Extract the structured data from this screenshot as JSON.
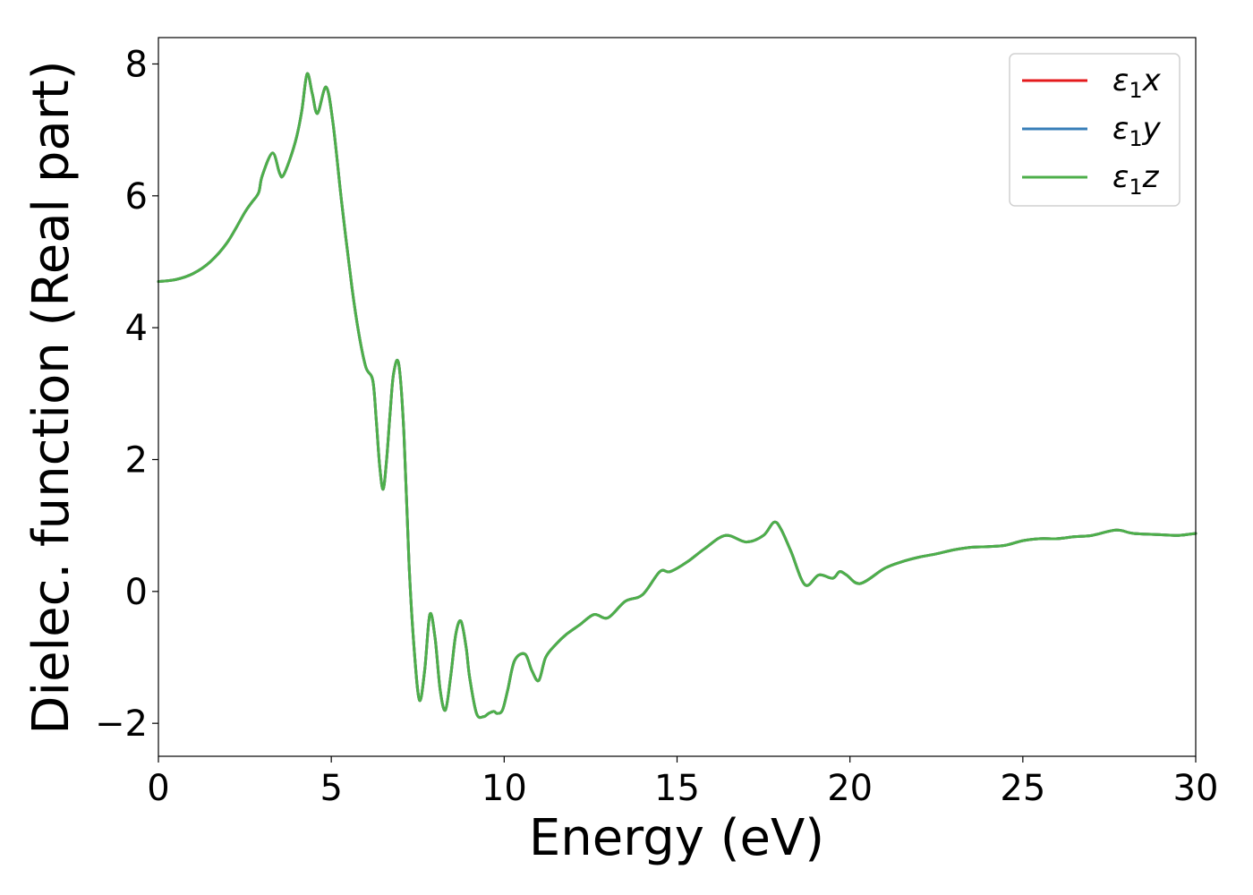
{
  "chart_data": {
    "type": "line",
    "xlabel": "Energy (eV)",
    "ylabel": "Dielec. function (Real part)",
    "xlim": [
      0,
      30
    ],
    "ylim": [
      -2.5,
      8.4
    ],
    "xticks": [
      0,
      5,
      10,
      15,
      20,
      25,
      30
    ],
    "yticks": [
      -2,
      0,
      2,
      4,
      6,
      8
    ],
    "xtick_labels": [
      "0",
      "5",
      "10",
      "15",
      "20",
      "25",
      "30"
    ],
    "ytick_labels": [
      "−2",
      "0",
      "2",
      "4",
      "6",
      "8"
    ],
    "grid": false,
    "legend_position": "top-right",
    "series": [
      {
        "name": "ε1x",
        "legend_main": "ε",
        "legend_sub": "1",
        "legend_var": "x",
        "color": "#e41a1c",
        "x": [
          0,
          0.5,
          1,
          1.5,
          2,
          2.5,
          2.7,
          2.9,
          3.0,
          3.3,
          3.5,
          3.6,
          3.8,
          4.0,
          4.15,
          4.3,
          4.45,
          4.6,
          4.85,
          5.05,
          5.3,
          5.6,
          5.8,
          6.0,
          6.2,
          6.3,
          6.4,
          6.5,
          6.6,
          6.7,
          6.8,
          6.95,
          7.1,
          7.25,
          7.4,
          7.55,
          7.7,
          7.85,
          8.0,
          8.15,
          8.3,
          8.45,
          8.6,
          8.75,
          8.9,
          9.0,
          9.2,
          9.4,
          9.55,
          9.7,
          9.8,
          9.95,
          10.1,
          10.3,
          10.6,
          10.8,
          11.0,
          11.2,
          11.5,
          11.8,
          12.2,
          12.6,
          13.0,
          13.5,
          14.0,
          14.5,
          14.8,
          15.3,
          15.8,
          16.4,
          17.0,
          17.5,
          17.8,
          18.0,
          18.3,
          18.7,
          19.1,
          19.5,
          19.7,
          19.9,
          20.3,
          21.0,
          21.5,
          22.0,
          22.5,
          23.0,
          23.5,
          24.0,
          24.5,
          25.0,
          25.5,
          26.0,
          26.5,
          27.0,
          27.7,
          28.2,
          29.0,
          29.5,
          30.0
        ],
        "y": [
          4.7,
          4.73,
          4.82,
          5.0,
          5.3,
          5.75,
          5.9,
          6.05,
          6.3,
          6.65,
          6.35,
          6.3,
          6.55,
          6.9,
          7.3,
          7.85,
          7.55,
          7.25,
          7.65,
          7.1,
          5.9,
          4.6,
          3.9,
          3.4,
          3.2,
          2.6,
          1.9,
          1.55,
          2.0,
          2.7,
          3.3,
          3.45,
          2.4,
          0.4,
          -0.9,
          -1.65,
          -1.2,
          -0.35,
          -0.7,
          -1.5,
          -1.8,
          -1.3,
          -0.65,
          -0.45,
          -0.85,
          -1.3,
          -1.85,
          -1.9,
          -1.85,
          -1.82,
          -1.85,
          -1.8,
          -1.5,
          -1.05,
          -0.95,
          -1.2,
          -1.35,
          -1.0,
          -0.8,
          -0.65,
          -0.5,
          -0.35,
          -0.4,
          -0.15,
          -0.05,
          0.3,
          0.3,
          0.45,
          0.65,
          0.85,
          0.75,
          0.85,
          1.05,
          0.95,
          0.6,
          0.1,
          0.25,
          0.2,
          0.3,
          0.25,
          0.12,
          0.35,
          0.45,
          0.52,
          0.57,
          0.63,
          0.67,
          0.68,
          0.7,
          0.77,
          0.8,
          0.8,
          0.83,
          0.85,
          0.93,
          0.88,
          0.86,
          0.85,
          0.88
        ]
      },
      {
        "name": "ε1y",
        "legend_main": "ε",
        "legend_sub": "1",
        "legend_var": "y",
        "color": "#377eb8",
        "x": [
          0,
          0.5,
          1,
          1.5,
          2,
          2.5,
          2.7,
          2.9,
          3.0,
          3.3,
          3.5,
          3.6,
          3.8,
          4.0,
          4.15,
          4.3,
          4.45,
          4.6,
          4.85,
          5.05,
          5.3,
          5.6,
          5.8,
          6.0,
          6.2,
          6.3,
          6.4,
          6.5,
          6.6,
          6.7,
          6.8,
          6.95,
          7.1,
          7.25,
          7.4,
          7.55,
          7.7,
          7.85,
          8.0,
          8.15,
          8.3,
          8.45,
          8.6,
          8.75,
          8.9,
          9.0,
          9.2,
          9.4,
          9.55,
          9.7,
          9.8,
          9.95,
          10.1,
          10.3,
          10.6,
          10.8,
          11.0,
          11.2,
          11.5,
          11.8,
          12.2,
          12.6,
          13.0,
          13.5,
          14.0,
          14.5,
          14.8,
          15.3,
          15.8,
          16.4,
          17.0,
          17.5,
          17.8,
          18.0,
          18.3,
          18.7,
          19.1,
          19.5,
          19.7,
          19.9,
          20.3,
          21.0,
          21.5,
          22.0,
          22.5,
          23.0,
          23.5,
          24.0,
          24.5,
          25.0,
          25.5,
          26.0,
          26.5,
          27.0,
          27.7,
          28.2,
          29.0,
          29.5,
          30.0
        ],
        "y": [
          4.7,
          4.73,
          4.82,
          5.0,
          5.3,
          5.75,
          5.9,
          6.05,
          6.3,
          6.65,
          6.35,
          6.3,
          6.55,
          6.9,
          7.3,
          7.85,
          7.55,
          7.25,
          7.65,
          7.1,
          5.9,
          4.6,
          3.9,
          3.4,
          3.2,
          2.6,
          1.9,
          1.55,
          2.0,
          2.7,
          3.3,
          3.45,
          2.4,
          0.4,
          -0.9,
          -1.65,
          -1.2,
          -0.35,
          -0.7,
          -1.5,
          -1.8,
          -1.3,
          -0.65,
          -0.45,
          -0.85,
          -1.3,
          -1.85,
          -1.9,
          -1.85,
          -1.82,
          -1.85,
          -1.8,
          -1.5,
          -1.05,
          -0.95,
          -1.2,
          -1.35,
          -1.0,
          -0.8,
          -0.65,
          -0.5,
          -0.35,
          -0.4,
          -0.15,
          -0.05,
          0.3,
          0.3,
          0.45,
          0.65,
          0.85,
          0.75,
          0.85,
          1.05,
          0.95,
          0.6,
          0.1,
          0.25,
          0.2,
          0.3,
          0.25,
          0.12,
          0.35,
          0.45,
          0.52,
          0.57,
          0.63,
          0.67,
          0.68,
          0.7,
          0.77,
          0.8,
          0.8,
          0.83,
          0.85,
          0.93,
          0.88,
          0.86,
          0.85,
          0.88
        ]
      },
      {
        "name": "ε1z",
        "legend_main": "ε",
        "legend_sub": "1",
        "legend_var": "z",
        "color": "#4daf4a",
        "x": [
          0,
          0.5,
          1,
          1.5,
          2,
          2.5,
          2.7,
          2.9,
          3.0,
          3.3,
          3.5,
          3.6,
          3.8,
          4.0,
          4.15,
          4.3,
          4.45,
          4.6,
          4.85,
          5.05,
          5.3,
          5.6,
          5.8,
          6.0,
          6.2,
          6.3,
          6.4,
          6.5,
          6.6,
          6.7,
          6.8,
          6.95,
          7.1,
          7.25,
          7.4,
          7.55,
          7.7,
          7.85,
          8.0,
          8.15,
          8.3,
          8.45,
          8.6,
          8.75,
          8.9,
          9.0,
          9.2,
          9.4,
          9.55,
          9.7,
          9.8,
          9.95,
          10.1,
          10.3,
          10.6,
          10.8,
          11.0,
          11.2,
          11.5,
          11.8,
          12.2,
          12.6,
          13.0,
          13.5,
          14.0,
          14.5,
          14.8,
          15.3,
          15.8,
          16.4,
          17.0,
          17.5,
          17.8,
          18.0,
          18.3,
          18.7,
          19.1,
          19.5,
          19.7,
          19.9,
          20.3,
          21.0,
          21.5,
          22.0,
          22.5,
          23.0,
          23.5,
          24.0,
          24.5,
          25.0,
          25.5,
          26.0,
          26.5,
          27.0,
          27.7,
          28.2,
          29.0,
          29.5,
          30.0
        ],
        "y": [
          4.7,
          4.73,
          4.82,
          5.0,
          5.3,
          5.75,
          5.9,
          6.05,
          6.3,
          6.65,
          6.35,
          6.3,
          6.55,
          6.9,
          7.3,
          7.85,
          7.55,
          7.25,
          7.65,
          7.1,
          5.9,
          4.6,
          3.9,
          3.4,
          3.2,
          2.6,
          1.9,
          1.55,
          2.0,
          2.7,
          3.3,
          3.45,
          2.4,
          0.4,
          -0.9,
          -1.65,
          -1.2,
          -0.35,
          -0.7,
          -1.5,
          -1.8,
          -1.3,
          -0.65,
          -0.45,
          -0.85,
          -1.3,
          -1.85,
          -1.9,
          -1.85,
          -1.82,
          -1.85,
          -1.8,
          -1.5,
          -1.05,
          -0.95,
          -1.2,
          -1.35,
          -1.0,
          -0.8,
          -0.65,
          -0.5,
          -0.35,
          -0.4,
          -0.15,
          -0.05,
          0.3,
          0.3,
          0.45,
          0.65,
          0.85,
          0.75,
          0.85,
          1.05,
          0.95,
          0.6,
          0.1,
          0.25,
          0.2,
          0.3,
          0.25,
          0.12,
          0.35,
          0.45,
          0.52,
          0.57,
          0.63,
          0.67,
          0.68,
          0.7,
          0.77,
          0.8,
          0.8,
          0.83,
          0.85,
          0.93,
          0.88,
          0.86,
          0.85,
          0.88
        ]
      }
    ]
  }
}
